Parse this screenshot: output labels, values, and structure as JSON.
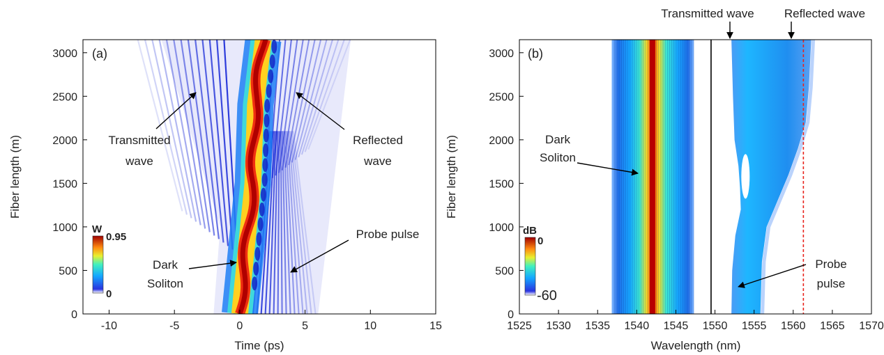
{
  "colors": {
    "soliton_core": "#b00000",
    "waves": "#0d1fd6",
    "wave_tint": "#7f87e8",
    "spectrum_edge": "#1b63e6",
    "spectrum_mid": "#21c4ff",
    "ref_line": "#e8231c",
    "divider": "#000000"
  },
  "chart_data": [
    {
      "type": "heatmap",
      "panel_label": "(a)",
      "xlabel": "Time (ps)",
      "ylabel": "Fiber length (m)",
      "xlim": [
        -12,
        15
      ],
      "ylim": [
        0,
        3150
      ],
      "xticks": [
        -10,
        -5,
        0,
        5,
        10,
        15
      ],
      "xtick_labels": [
        "-10",
        "-5",
        "0",
        "5",
        "10",
        "15"
      ],
      "yticks": [
        0,
        500,
        1000,
        1500,
        2000,
        2500,
        3000
      ],
      "ytick_labels": [
        "0",
        "500",
        "1000",
        "1500",
        "2000",
        "2500",
        "3000"
      ],
      "colorbar": {
        "unit": "W",
        "max_label": "0.95",
        "min_label": "0",
        "min": 0,
        "max": 0.95
      },
      "soliton_track": [
        {
          "L": 0,
          "t": 0
        },
        {
          "L": 600,
          "t": 0.4
        },
        {
          "L": 1500,
          "t": 1.0
        },
        {
          "L": 2400,
          "t": 1.2
        },
        {
          "L": 3150,
          "t": 1.8
        }
      ],
      "annotations": [
        {
          "lines": [
            "Transmitted",
            "wave"
          ],
          "arrow_to": {
            "x": -3.3,
            "y": 2580
          }
        },
        {
          "lines": [
            "Reflected",
            "wave"
          ],
          "arrow_to": {
            "x": 6.6,
            "y": 2580
          }
        },
        {
          "lines": [
            "Dark",
            "Soliton"
          ],
          "arrow_to": {
            "x": 0.7,
            "y": 600
          }
        },
        {
          "lines": [
            "Probe pulse"
          ],
          "arrow_to": {
            "x": 4.6,
            "y": 480
          }
        }
      ]
    },
    {
      "type": "heatmap",
      "panel_label": "(b)",
      "xlabel": "Wavelength (nm)",
      "ylabel": "Fiber length (m)",
      "xlim": [
        1525,
        1570
      ],
      "ylim": [
        0,
        3150
      ],
      "xticks": [
        1525,
        1530,
        1535,
        1540,
        1545,
        1550,
        1555,
        1560,
        1565,
        1570
      ],
      "xtick_labels": [
        "1525",
        "1530",
        "1535",
        "1540",
        "1545",
        "1550",
        "1555",
        "1560",
        "1565",
        "1570"
      ],
      "yticks": [
        0,
        500,
        1000,
        1500,
        2000,
        2500,
        3000
      ],
      "ytick_labels": [
        "0",
        "500",
        "1000",
        "1500",
        "2000",
        "2500",
        "3000"
      ],
      "colorbar": {
        "unit": "dB",
        "max_label": "0",
        "min_label": "-60",
        "min": -60,
        "max": 0
      },
      "soliton_center_nm": 1542,
      "divider_nm": 1549.5,
      "reflected_wave_nm": 1561.3,
      "transmitted_wave_nm": 1553.6,
      "top_labels": [
        "Transmitted wave",
        "Reflected wave"
      ],
      "annotations": [
        {
          "lines": [
            "Dark",
            "Soliton"
          ],
          "arrow_to": {
            "x": 1541.8,
            "y": 1620
          }
        },
        {
          "lines": [
            "Probe",
            "pulse"
          ],
          "arrow_to": {
            "x": 1553.8,
            "y": 300
          }
        }
      ]
    }
  ]
}
